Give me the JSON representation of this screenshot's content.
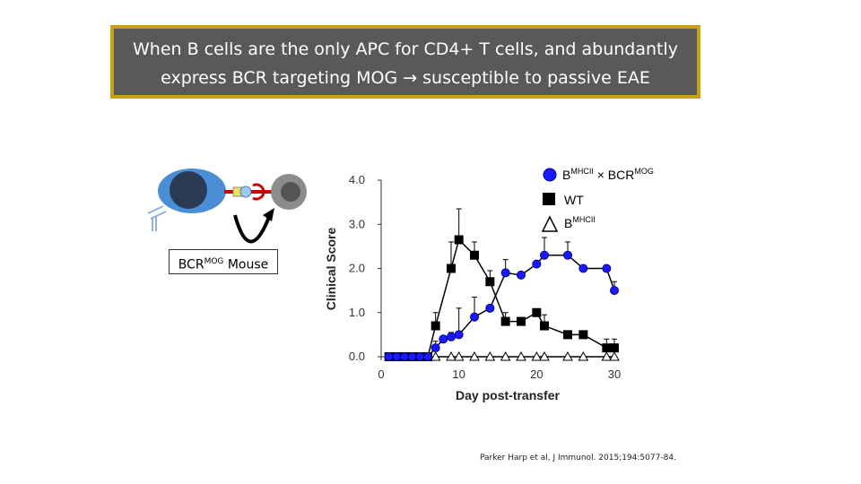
{
  "banner": {
    "line1": "When B cells are the only APC for CD4+ T cells, and abundantly",
    "line2": "express BCR targeting MOG → susceptible to passive EAE"
  },
  "mouse_label": {
    "main": "BCR",
    "sup": "MOG",
    "suffix": " Mouse"
  },
  "citation": "Parker Harp et al, J Immunol. 2015;194:5077-84.",
  "colors": {
    "banner_bg": "#595959",
    "banner_border": "#c8a012",
    "series_blue": "#1a1aff",
    "series_black": "#000000"
  },
  "chart_data": {
    "type": "line",
    "xlabel": "Day post-transfer",
    "ylabel": "Clinical Score",
    "xlim": [
      0,
      30
    ],
    "ylim": [
      0,
      4
    ],
    "xticks": [
      "0",
      "10",
      "20",
      "30"
    ],
    "yticks": [
      "0.0",
      "1.0",
      "2.0",
      "3.0",
      "4.0"
    ],
    "legend_placement": "top-right",
    "series": [
      {
        "name": "B",
        "name_sup": "MHCII",
        "name_mid": " × BCR",
        "name_sup2": "MOG",
        "marker": "circle",
        "color": "#1a1aff",
        "x": [
          1,
          2,
          3,
          4,
          5,
          6,
          7,
          8,
          9,
          10,
          12,
          14,
          16,
          18,
          20,
          21,
          24,
          26,
          29,
          30
        ],
        "y": [
          0,
          0,
          0,
          0,
          0,
          0,
          0.2,
          0.4,
          0.45,
          0.5,
          0.9,
          1.1,
          1.9,
          1.85,
          2.1,
          2.3,
          2.3,
          2.0,
          2.0,
          1.5
        ],
        "err": [
          0,
          0,
          0,
          0,
          0,
          0,
          0.15,
          0,
          0.1,
          0.6,
          0.45,
          0,
          0.3,
          0,
          0,
          0.4,
          0.3,
          0,
          0,
          0.2
        ]
      },
      {
        "name": "WT",
        "marker": "square",
        "color": "#000000",
        "x": [
          1,
          2,
          3,
          4,
          5,
          6,
          7,
          9,
          10,
          12,
          14,
          16,
          18,
          20,
          21,
          24,
          26,
          29,
          30
        ],
        "y": [
          0,
          0,
          0,
          0,
          0,
          0,
          0.7,
          2.0,
          2.65,
          2.3,
          1.7,
          0.8,
          0.8,
          1.0,
          0.7,
          0.5,
          0.5,
          0.2,
          0.2
        ],
        "err": [
          0,
          0,
          0,
          0,
          0,
          0,
          0.3,
          0.6,
          0.7,
          0.3,
          0.25,
          0.2,
          0,
          0,
          0.25,
          0,
          0,
          0.2,
          0.2
        ]
      },
      {
        "name": "B",
        "name_sup": "MHCII",
        "marker": "triangle",
        "color": "#000000",
        "x": [
          7,
          9,
          10,
          12,
          14,
          16,
          18,
          20,
          21,
          24,
          26,
          29,
          30
        ],
        "y": [
          0,
          0,
          0,
          0,
          0,
          0,
          0,
          0,
          0,
          0,
          0,
          0,
          0
        ],
        "err": [
          0,
          0,
          0,
          0,
          0,
          0,
          0,
          0,
          0,
          0,
          0,
          0,
          0
        ]
      }
    ]
  }
}
